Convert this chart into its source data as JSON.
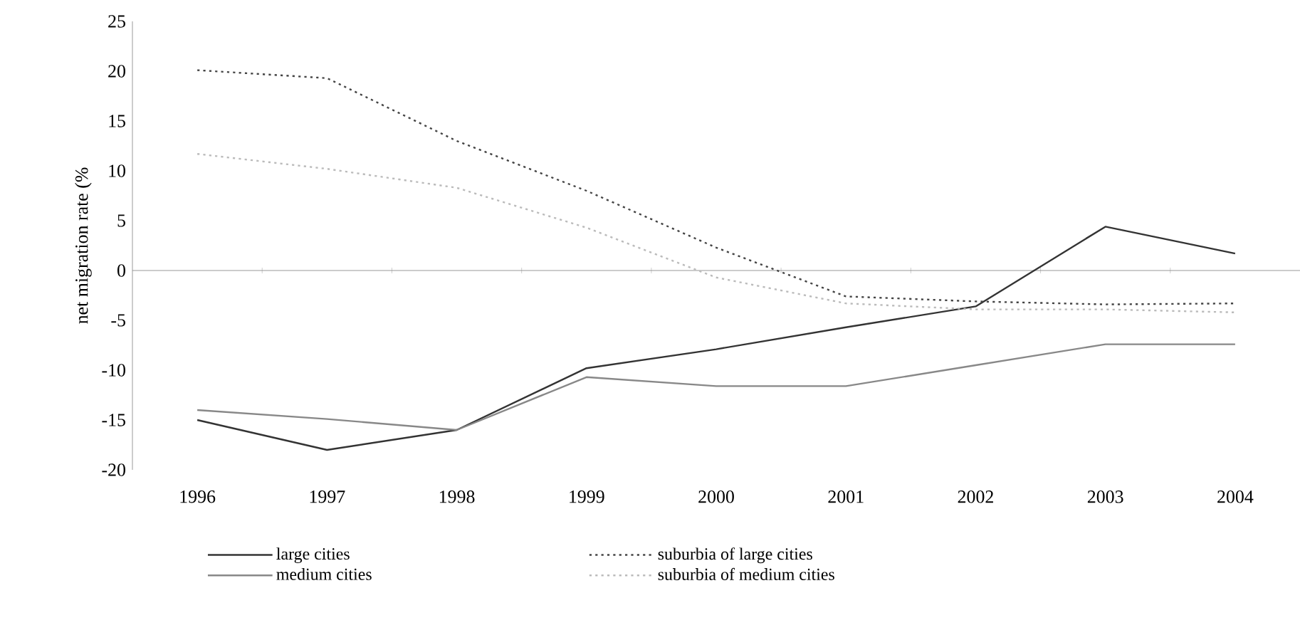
{
  "chart_data": {
    "type": "line",
    "ylabel": "net migration rate (%",
    "categories": [
      "1996",
      "1997",
      "1998",
      "1999",
      "2000",
      "2001",
      "2002",
      "2003",
      "2004"
    ],
    "series": [
      {
        "name": "large cities",
        "color": "#333333",
        "line_style": "solid",
        "values": [
          -15,
          -18,
          -16,
          -9.8,
          -7.9,
          -5.7,
          -3.6,
          4.4,
          1.7
        ]
      },
      {
        "name": "medium cities",
        "color": "#888888",
        "line_style": "solid",
        "values": [
          -14,
          -14.9,
          -16,
          -10.7,
          -11.6,
          -11.6,
          -9.5,
          -7.4,
          -7.4
        ]
      },
      {
        "name": "suburbia of large cities",
        "color": "#444444",
        "line_style": "dotted",
        "values": [
          20.1,
          19.3,
          13,
          8,
          2.3,
          -2.6,
          -3.1,
          -3.4,
          -3.3
        ]
      },
      {
        "name": "suburbia of medium cities",
        "color": "#bbbbbb",
        "line_style": "dotted",
        "values": [
          11.7,
          10.2,
          8.3,
          4.3,
          -0.7,
          -3.3,
          -3.9,
          -3.9,
          -4.2
        ]
      }
    ],
    "ylim": [
      -20,
      25
    ],
    "yticks": [
      -20,
      -15,
      -10,
      -5,
      0,
      5,
      10,
      15,
      20,
      25
    ],
    "legend": "bottom",
    "marker": "none"
  }
}
